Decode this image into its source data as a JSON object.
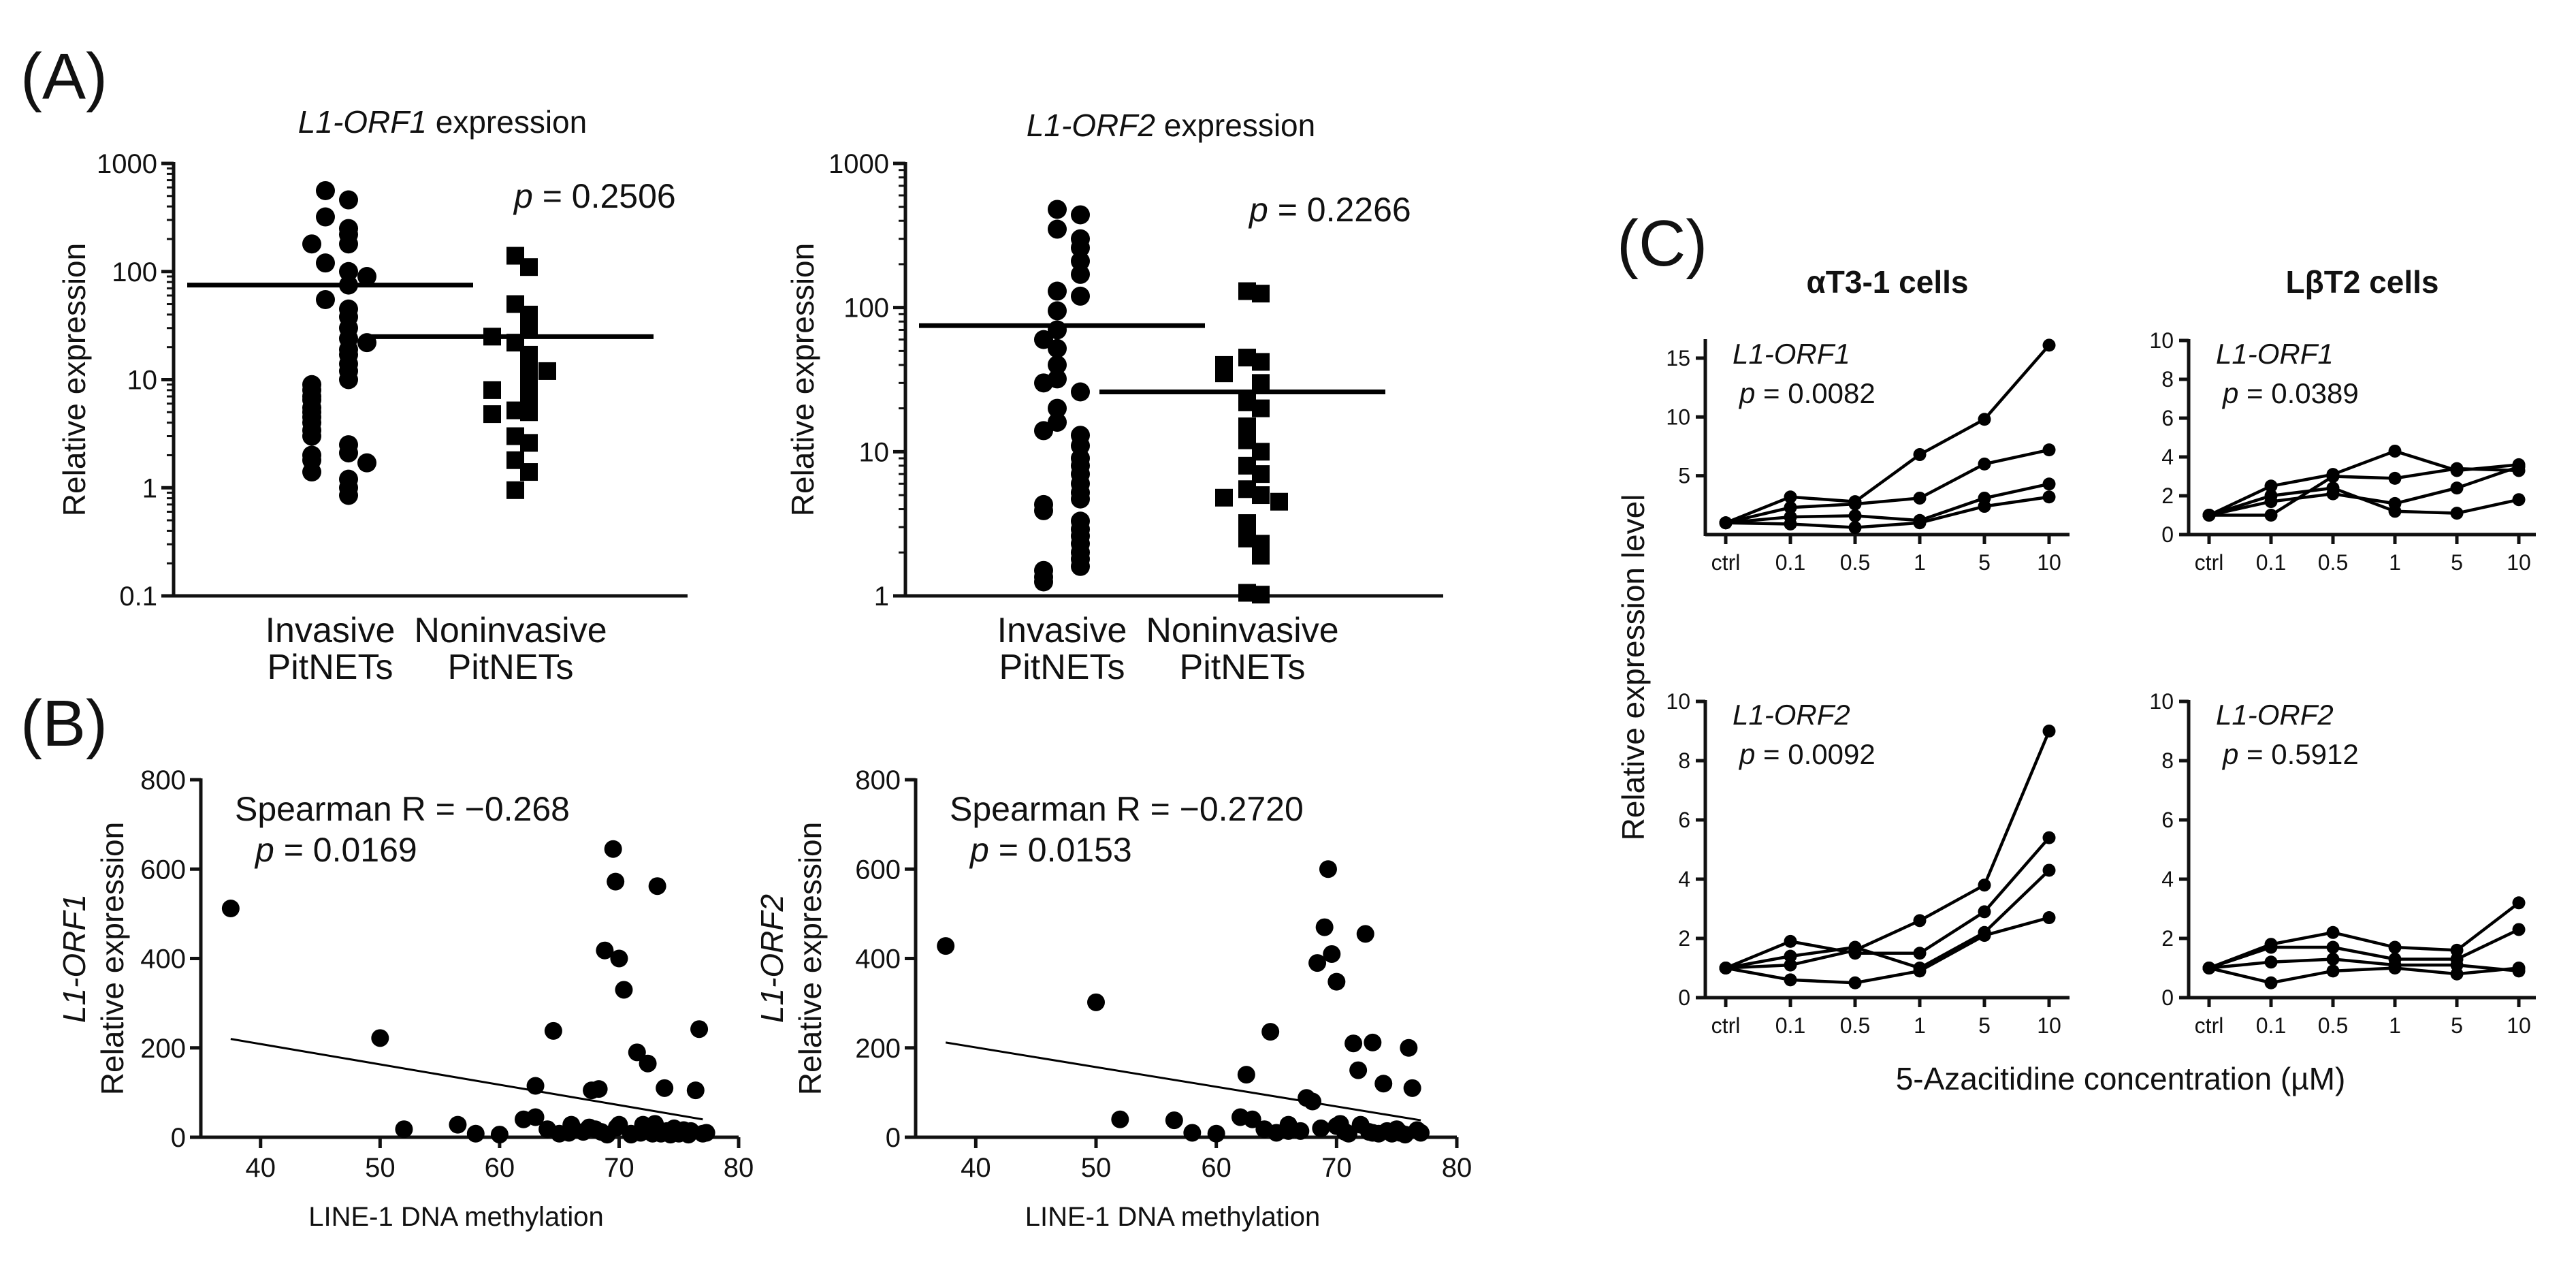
{
  "figure": {
    "panel_A": "(A)",
    "panel_B": "(B)",
    "panel_C": "(C)"
  },
  "chart_data": [
    {
      "id": "A1",
      "type": "scatter",
      "yscale": "log",
      "title_italic": "L1-ORF1",
      "title_rest": " expression",
      "ylabel": "Relative expression",
      "yticks": [
        "1000",
        "100",
        "10",
        "1",
        "0.1"
      ],
      "ylim": [
        0.1,
        1000
      ],
      "pvalue": "= 0.2506",
      "categories": [
        {
          "line1": "Invasive",
          "line2": "PitNETs",
          "marker": "circle",
          "mean": 75,
          "values": [
            560,
            460,
            320,
            250,
            220,
            180,
            120,
            100,
            75,
            55,
            45,
            38,
            30,
            24,
            19,
            17,
            14,
            12,
            10,
            9,
            8,
            7,
            6.5,
            5.5,
            5,
            4.5,
            4,
            3.4,
            3,
            2.5,
            2.1,
            2,
            1.8,
            1.7,
            1.4,
            1.2,
            1,
            0.85,
            180,
            90,
            22
          ]
        },
        {
          "line1": "Noninvasive",
          "line2": "PitNETs",
          "marker": "square",
          "mean": 25,
          "values": [
            140,
            110,
            50,
            40,
            30,
            22,
            17,
            14,
            11,
            9,
            7,
            5.2,
            5,
            4.8,
            3,
            2.6,
            1.8,
            1.4,
            0.95,
            25,
            12,
            8
          ]
        }
      ]
    },
    {
      "id": "A2",
      "type": "scatter",
      "yscale": "log",
      "title_italic": "L1-ORF2",
      "title_rest": " expression",
      "ylabel": "Relative expression",
      "yticks": [
        "1000",
        "100",
        "10",
        "1"
      ],
      "ylim": [
        1,
        1000
      ],
      "pvalue": "= 0.2266",
      "categories": [
        {
          "line1": "Invasive",
          "line2": "PitNETs",
          "marker": "circle",
          "mean": 75,
          "values": [
            480,
            440,
            350,
            300,
            260,
            210,
            170,
            130,
            95,
            70,
            52,
            40,
            32,
            26,
            20,
            16,
            13,
            11,
            9,
            8,
            7,
            6,
            5.2,
            4.7,
            4.3,
            3.9,
            3.3,
            2.9,
            2.6,
            2.3,
            2,
            1.8,
            1.6,
            1.5,
            1.35,
            1.25,
            120,
            60,
            30,
            14
          ]
        },
        {
          "line1": "Noninvasive",
          "line2": "PitNETs",
          "marker": "square",
          "mean": 26,
          "values": [
            130,
            125,
            45,
            42,
            40,
            35,
            22,
            20,
            15,
            12,
            10,
            8,
            7,
            5.5,
            5,
            4.8,
            4.5,
            3.2,
            2.5,
            2.3,
            1.9,
            1.05,
            1.02,
            30
          ]
        }
      ]
    },
    {
      "id": "B1",
      "type": "scatter",
      "ylabel_italic": "L1-ORF1",
      "ylabel": "Relative expression",
      "xlabel": "LINE-1 DNA methylation",
      "xticks": [
        "40",
        "50",
        "60",
        "70",
        "80"
      ],
      "yticks": [
        "0",
        "200",
        "400",
        "600",
        "800"
      ],
      "xlim": [
        35,
        80
      ],
      "ylim": [
        0,
        800
      ],
      "stat1": "Spearman R = −0.268",
      "stat2": "= 0.0169",
      "fit": {
        "x0": 37.5,
        "y0": 220,
        "x1": 77,
        "y1": 40
      },
      "points": [
        [
          37.5,
          512
        ],
        [
          50,
          222
        ],
        [
          52,
          18
        ],
        [
          56.5,
          28
        ],
        [
          58,
          8
        ],
        [
          60,
          6
        ],
        [
          62,
          40
        ],
        [
          63,
          115
        ],
        [
          63,
          45
        ],
        [
          64,
          18
        ],
        [
          64.5,
          238
        ],
        [
          65,
          8
        ],
        [
          66,
          28
        ],
        [
          67,
          12
        ],
        [
          67.5,
          22
        ],
        [
          67.7,
          105
        ],
        [
          68,
          18
        ],
        [
          68.3,
          108
        ],
        [
          68.5,
          12
        ],
        [
          68.8,
          418
        ],
        [
          69,
          6
        ],
        [
          69.5,
          645
        ],
        [
          69.7,
          572
        ],
        [
          70,
          400
        ],
        [
          70,
          28
        ],
        [
          70.4,
          330
        ],
        [
          71,
          8
        ],
        [
          71,
          6
        ],
        [
          71.5,
          190
        ],
        [
          71.8,
          10
        ],
        [
          72,
          28
        ],
        [
          72.4,
          165
        ],
        [
          72.6,
          14
        ],
        [
          73,
          30
        ],
        [
          73.2,
          562
        ],
        [
          73.5,
          8
        ],
        [
          73.8,
          110
        ],
        [
          74,
          14
        ],
        [
          74.3,
          6
        ],
        [
          74.6,
          20
        ],
        [
          75,
          8
        ],
        [
          75.4,
          16
        ],
        [
          75.8,
          6
        ],
        [
          76,
          14
        ],
        [
          76.4,
          105
        ],
        [
          76.7,
          242
        ],
        [
          77,
          8
        ],
        [
          77.3,
          10
        ],
        [
          69.8,
          22
        ],
        [
          65.8,
          10
        ],
        [
          72.8,
          8
        ]
      ]
    },
    {
      "id": "B2",
      "type": "scatter",
      "ylabel_italic": "L1-ORF2",
      "ylabel": "Relative expression",
      "xlabel": "LINE-1 DNA methylation",
      "xticks": [
        "40",
        "50",
        "60",
        "70",
        "80"
      ],
      "yticks": [
        "0",
        "200",
        "400",
        "600",
        "800"
      ],
      "xlim": [
        35,
        80
      ],
      "ylim": [
        0,
        800
      ],
      "stat1": "Spearman R = −0.2720",
      "stat2": "= 0.0153",
      "fit": {
        "x0": 37.5,
        "y0": 212,
        "x1": 77,
        "y1": 38
      },
      "points": [
        [
          37.5,
          428
        ],
        [
          50,
          302
        ],
        [
          52,
          40
        ],
        [
          56.5,
          38
        ],
        [
          58,
          10
        ],
        [
          60,
          8
        ],
        [
          62,
          45
        ],
        [
          62.5,
          140
        ],
        [
          63,
          40
        ],
        [
          64,
          18
        ],
        [
          64.5,
          236
        ],
        [
          65,
          10
        ],
        [
          66,
          28
        ],
        [
          67,
          14
        ],
        [
          67.5,
          88
        ],
        [
          68,
          80
        ],
        [
          68.4,
          390
        ],
        [
          68.7,
          20
        ],
        [
          69,
          470
        ],
        [
          69.3,
          600
        ],
        [
          69.6,
          410
        ],
        [
          70,
          348
        ],
        [
          70.3,
          30
        ],
        [
          70.7,
          12
        ],
        [
          71,
          8
        ],
        [
          71.4,
          210
        ],
        [
          71.8,
          150
        ],
        [
          72,
          28
        ],
        [
          72.4,
          455
        ],
        [
          72.7,
          12
        ],
        [
          73,
          212
        ],
        [
          73.5,
          8
        ],
        [
          73.9,
          120
        ],
        [
          74.2,
          14
        ],
        [
          74.6,
          8
        ],
        [
          75,
          18
        ],
        [
          75.3,
          10
        ],
        [
          75.7,
          6
        ],
        [
          76,
          200
        ],
        [
          76.3,
          110
        ],
        [
          76.7,
          16
        ],
        [
          77,
          10
        ],
        [
          70,
          25
        ],
        [
          66,
          14
        ],
        [
          73,
          10
        ]
      ]
    },
    {
      "id": "C_OL",
      "type": "line",
      "title": "αT3-1 cells",
      "gene_italic": "L1-ORF1",
      "pvalue": "= 0.0082",
      "categories": [
        "ctrl",
        "0.1",
        "0.5",
        "1",
        "5",
        "10"
      ],
      "yticks": [
        "5",
        "10",
        "15"
      ],
      "ylim": [
        0,
        16.5
      ],
      "series": [
        {
          "values": [
            1.0,
            3.2,
            2.8,
            6.8,
            9.8,
            16.1
          ]
        },
        {
          "values": [
            1.0,
            2.3,
            2.6,
            3.1,
            6.0,
            7.2
          ]
        },
        {
          "values": [
            1.0,
            1.5,
            1.6,
            1.2,
            3.1,
            4.3
          ]
        },
        {
          "values": [
            1.0,
            0.9,
            0.6,
            1.0,
            2.4,
            3.2
          ]
        }
      ]
    },
    {
      "id": "C_OR",
      "type": "line",
      "title": "LβT2 cells",
      "gene_italic": "L1-ORF1",
      "pvalue": "= 0.0389",
      "categories": [
        "ctrl",
        "0.1",
        "0.5",
        "1",
        "5",
        "10"
      ],
      "yticks": [
        "0",
        "2",
        "4",
        "6",
        "8",
        "10"
      ],
      "ylim": [
        0,
        10
      ],
      "series": [
        {
          "values": [
            1.0,
            2.5,
            3.1,
            4.3,
            3.3,
            3.6
          ]
        },
        {
          "values": [
            1.0,
            2.0,
            2.4,
            1.2,
            1.1,
            1.8
          ]
        },
        {
          "values": [
            1.0,
            1.7,
            2.1,
            1.6,
            2.4,
            3.5
          ]
        },
        {
          "values": [
            1.0,
            1.0,
            3.0,
            2.9,
            3.4,
            3.3
          ]
        }
      ]
    },
    {
      "id": "C_BL",
      "type": "line",
      "gene_italic": "L1-ORF2",
      "pvalue": "= 0.0092",
      "categories": [
        "ctrl",
        "0.1",
        "0.5",
        "1",
        "5",
        "10"
      ],
      "yticks": [
        "0",
        "2",
        "4",
        "6",
        "8",
        "10"
      ],
      "ylim": [
        0,
        10
      ],
      "series": [
        {
          "values": [
            1.0,
            1.1,
            1.6,
            2.6,
            3.8,
            9.0
          ]
        },
        {
          "values": [
            1.0,
            1.9,
            1.5,
            1.5,
            2.9,
            5.4
          ]
        },
        {
          "values": [
            1.0,
            1.4,
            1.7,
            1.0,
            2.2,
            4.3
          ]
        },
        {
          "values": [
            1.0,
            0.6,
            0.5,
            0.9,
            2.1,
            2.7
          ]
        }
      ]
    },
    {
      "id": "C_BR",
      "type": "line",
      "gene_italic": "L1-ORF2",
      "pvalue": "= 0.5912",
      "categories": [
        "ctrl",
        "0.1",
        "0.5",
        "1",
        "5",
        "10"
      ],
      "yticks": [
        "0",
        "2",
        "4",
        "6",
        "8",
        "10"
      ],
      "ylim": [
        0,
        10
      ],
      "series": [
        {
          "values": [
            1.0,
            1.8,
            2.2,
            1.7,
            1.6,
            3.2
          ]
        },
        {
          "values": [
            1.0,
            1.7,
            1.7,
            1.3,
            1.3,
            2.3
          ]
        },
        {
          "values": [
            1.0,
            1.2,
            1.3,
            1.1,
            1.1,
            0.9
          ]
        },
        {
          "values": [
            1.0,
            0.5,
            0.9,
            1.0,
            0.8,
            1.0
          ]
        }
      ]
    }
  ],
  "shared": {
    "c_ylabel": "Relative expression level",
    "c_xlabel": "5-Azacitidine concentration (µM)",
    "p_letter": "p"
  }
}
